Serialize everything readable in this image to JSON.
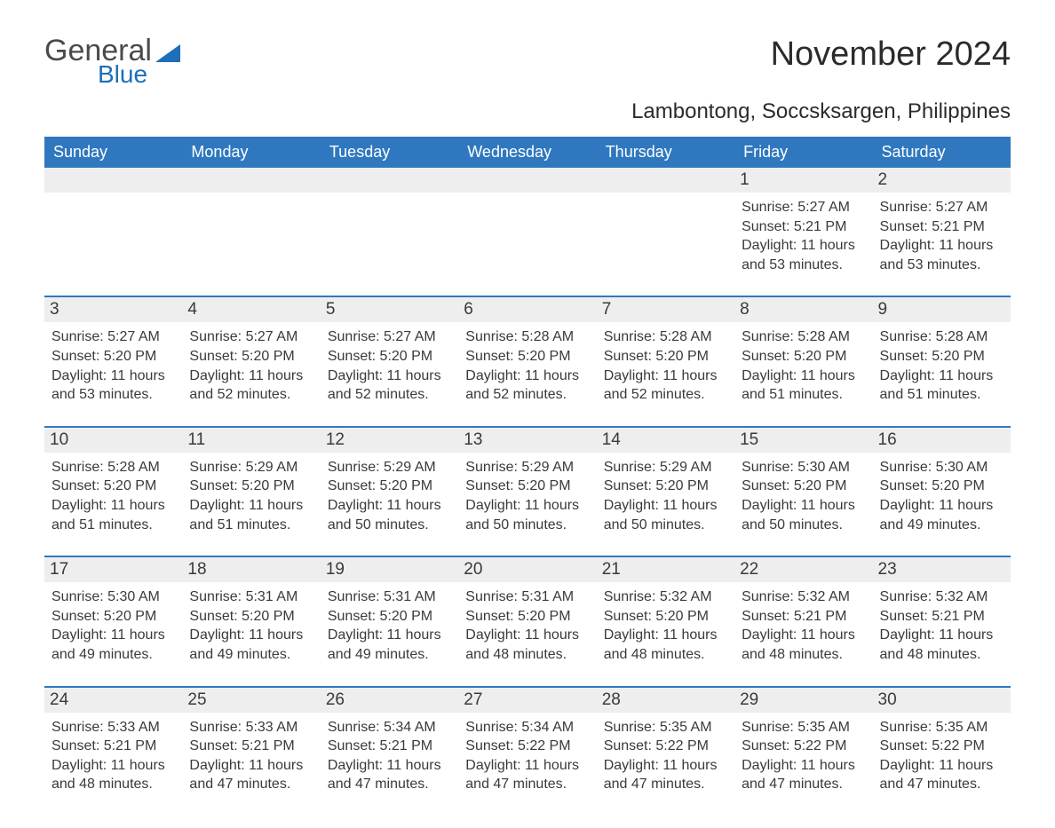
{
  "logo": {
    "text1": "General",
    "text2": "Blue",
    "brand_color": "#1c6fb8"
  },
  "title": "November 2024",
  "subtitle": "Lambontong, Soccsksargen, Philippines",
  "colors": {
    "header_bg": "#2f78bf",
    "header_text": "#ffffff",
    "daynum_bg": "#eeeeee",
    "row_border": "#2f78bf",
    "text": "#3a3a3a",
    "page_bg": "#ffffff"
  },
  "day_headers": [
    "Sunday",
    "Monday",
    "Tuesday",
    "Wednesday",
    "Thursday",
    "Friday",
    "Saturday"
  ],
  "weeks": [
    [
      {
        "num": "",
        "sunrise": "",
        "sunset": "",
        "daylight": ""
      },
      {
        "num": "",
        "sunrise": "",
        "sunset": "",
        "daylight": ""
      },
      {
        "num": "",
        "sunrise": "",
        "sunset": "",
        "daylight": ""
      },
      {
        "num": "",
        "sunrise": "",
        "sunset": "",
        "daylight": ""
      },
      {
        "num": "",
        "sunrise": "",
        "sunset": "",
        "daylight": ""
      },
      {
        "num": "1",
        "sunrise": "Sunrise: 5:27 AM",
        "sunset": "Sunset: 5:21 PM",
        "daylight": "Daylight: 11 hours and 53 minutes."
      },
      {
        "num": "2",
        "sunrise": "Sunrise: 5:27 AM",
        "sunset": "Sunset: 5:21 PM",
        "daylight": "Daylight: 11 hours and 53 minutes."
      }
    ],
    [
      {
        "num": "3",
        "sunrise": "Sunrise: 5:27 AM",
        "sunset": "Sunset: 5:20 PM",
        "daylight": "Daylight: 11 hours and 53 minutes."
      },
      {
        "num": "4",
        "sunrise": "Sunrise: 5:27 AM",
        "sunset": "Sunset: 5:20 PM",
        "daylight": "Daylight: 11 hours and 52 minutes."
      },
      {
        "num": "5",
        "sunrise": "Sunrise: 5:27 AM",
        "sunset": "Sunset: 5:20 PM",
        "daylight": "Daylight: 11 hours and 52 minutes."
      },
      {
        "num": "6",
        "sunrise": "Sunrise: 5:28 AM",
        "sunset": "Sunset: 5:20 PM",
        "daylight": "Daylight: 11 hours and 52 minutes."
      },
      {
        "num": "7",
        "sunrise": "Sunrise: 5:28 AM",
        "sunset": "Sunset: 5:20 PM",
        "daylight": "Daylight: 11 hours and 52 minutes."
      },
      {
        "num": "8",
        "sunrise": "Sunrise: 5:28 AM",
        "sunset": "Sunset: 5:20 PM",
        "daylight": "Daylight: 11 hours and 51 minutes."
      },
      {
        "num": "9",
        "sunrise": "Sunrise: 5:28 AM",
        "sunset": "Sunset: 5:20 PM",
        "daylight": "Daylight: 11 hours and 51 minutes."
      }
    ],
    [
      {
        "num": "10",
        "sunrise": "Sunrise: 5:28 AM",
        "sunset": "Sunset: 5:20 PM",
        "daylight": "Daylight: 11 hours and 51 minutes."
      },
      {
        "num": "11",
        "sunrise": "Sunrise: 5:29 AM",
        "sunset": "Sunset: 5:20 PM",
        "daylight": "Daylight: 11 hours and 51 minutes."
      },
      {
        "num": "12",
        "sunrise": "Sunrise: 5:29 AM",
        "sunset": "Sunset: 5:20 PM",
        "daylight": "Daylight: 11 hours and 50 minutes."
      },
      {
        "num": "13",
        "sunrise": "Sunrise: 5:29 AM",
        "sunset": "Sunset: 5:20 PM",
        "daylight": "Daylight: 11 hours and 50 minutes."
      },
      {
        "num": "14",
        "sunrise": "Sunrise: 5:29 AM",
        "sunset": "Sunset: 5:20 PM",
        "daylight": "Daylight: 11 hours and 50 minutes."
      },
      {
        "num": "15",
        "sunrise": "Sunrise: 5:30 AM",
        "sunset": "Sunset: 5:20 PM",
        "daylight": "Daylight: 11 hours and 50 minutes."
      },
      {
        "num": "16",
        "sunrise": "Sunrise: 5:30 AM",
        "sunset": "Sunset: 5:20 PM",
        "daylight": "Daylight: 11 hours and 49 minutes."
      }
    ],
    [
      {
        "num": "17",
        "sunrise": "Sunrise: 5:30 AM",
        "sunset": "Sunset: 5:20 PM",
        "daylight": "Daylight: 11 hours and 49 minutes."
      },
      {
        "num": "18",
        "sunrise": "Sunrise: 5:31 AM",
        "sunset": "Sunset: 5:20 PM",
        "daylight": "Daylight: 11 hours and 49 minutes."
      },
      {
        "num": "19",
        "sunrise": "Sunrise: 5:31 AM",
        "sunset": "Sunset: 5:20 PM",
        "daylight": "Daylight: 11 hours and 49 minutes."
      },
      {
        "num": "20",
        "sunrise": "Sunrise: 5:31 AM",
        "sunset": "Sunset: 5:20 PM",
        "daylight": "Daylight: 11 hours and 48 minutes."
      },
      {
        "num": "21",
        "sunrise": "Sunrise: 5:32 AM",
        "sunset": "Sunset: 5:20 PM",
        "daylight": "Daylight: 11 hours and 48 minutes."
      },
      {
        "num": "22",
        "sunrise": "Sunrise: 5:32 AM",
        "sunset": "Sunset: 5:21 PM",
        "daylight": "Daylight: 11 hours and 48 minutes."
      },
      {
        "num": "23",
        "sunrise": "Sunrise: 5:32 AM",
        "sunset": "Sunset: 5:21 PM",
        "daylight": "Daylight: 11 hours and 48 minutes."
      }
    ],
    [
      {
        "num": "24",
        "sunrise": "Sunrise: 5:33 AM",
        "sunset": "Sunset: 5:21 PM",
        "daylight": "Daylight: 11 hours and 48 minutes."
      },
      {
        "num": "25",
        "sunrise": "Sunrise: 5:33 AM",
        "sunset": "Sunset: 5:21 PM",
        "daylight": "Daylight: 11 hours and 47 minutes."
      },
      {
        "num": "26",
        "sunrise": "Sunrise: 5:34 AM",
        "sunset": "Sunset: 5:21 PM",
        "daylight": "Daylight: 11 hours and 47 minutes."
      },
      {
        "num": "27",
        "sunrise": "Sunrise: 5:34 AM",
        "sunset": "Sunset: 5:22 PM",
        "daylight": "Daylight: 11 hours and 47 minutes."
      },
      {
        "num": "28",
        "sunrise": "Sunrise: 5:35 AM",
        "sunset": "Sunset: 5:22 PM",
        "daylight": "Daylight: 11 hours and 47 minutes."
      },
      {
        "num": "29",
        "sunrise": "Sunrise: 5:35 AM",
        "sunset": "Sunset: 5:22 PM",
        "daylight": "Daylight: 11 hours and 47 minutes."
      },
      {
        "num": "30",
        "sunrise": "Sunrise: 5:35 AM",
        "sunset": "Sunset: 5:22 PM",
        "daylight": "Daylight: 11 hours and 47 minutes."
      }
    ]
  ]
}
